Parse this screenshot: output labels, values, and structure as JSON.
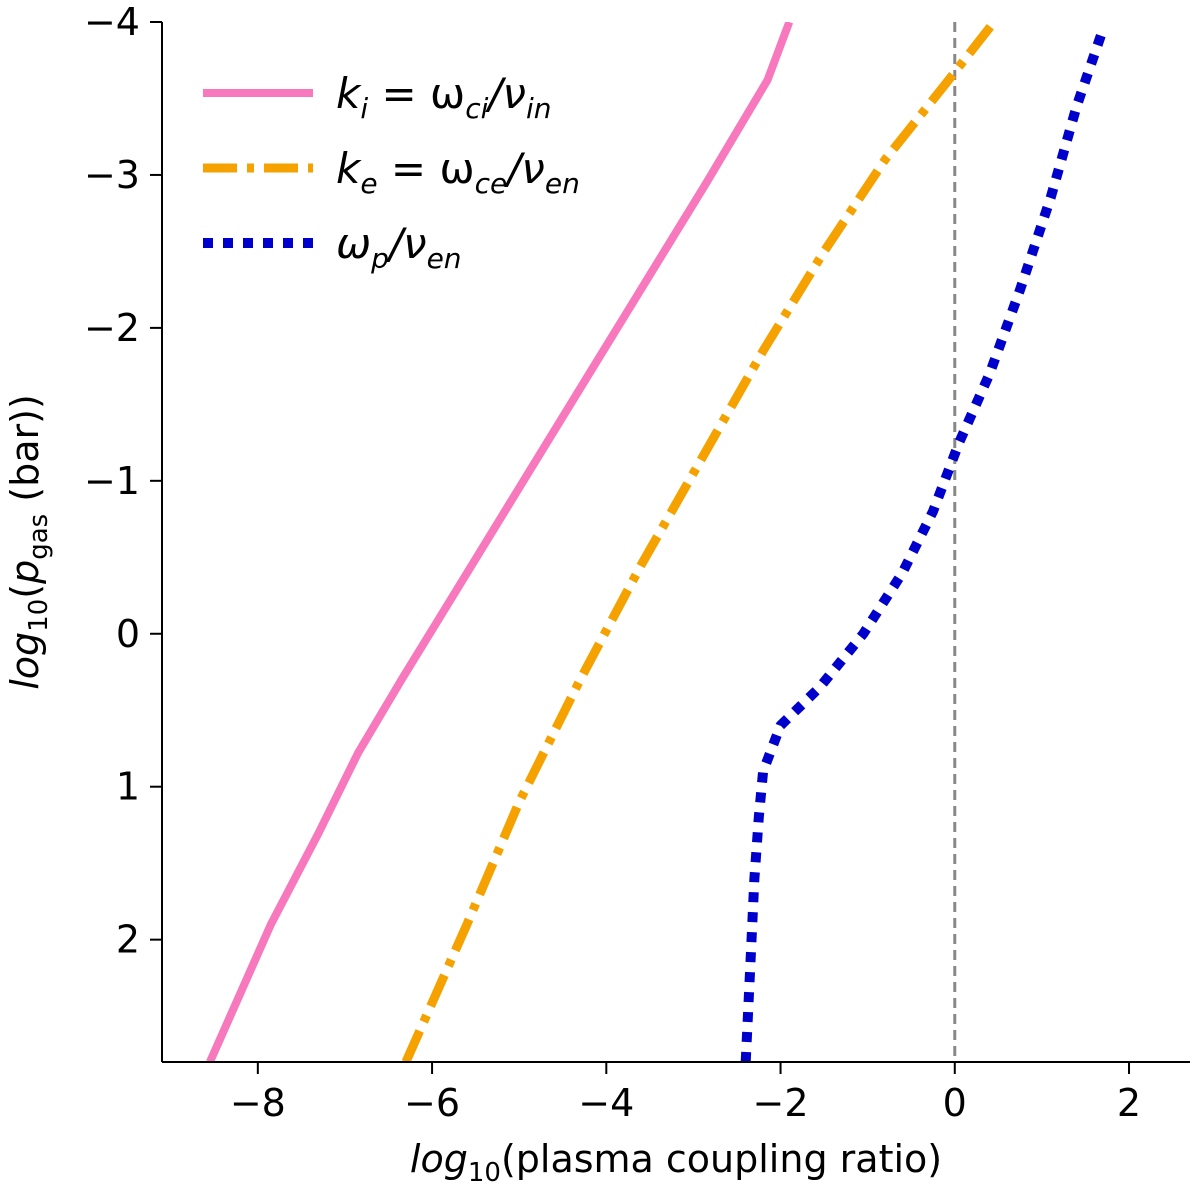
{
  "chart_data": {
    "type": "line",
    "title": "",
    "xlabel": "log10(plasma coupling ratio)",
    "ylabel": "log10(p_gas (bar))",
    "xlabel_parts": {
      "log": "log",
      "ten": "10",
      "rest": "(plasma coupling ratio)"
    },
    "ylabel_parts": {
      "log": "log",
      "ten": "10",
      "open": "(",
      "p": "p",
      "gas": "gas",
      "rest": " (bar))"
    },
    "xlim": [
      -9.1,
      2.7
    ],
    "ylim": [
      2.8,
      -4.0
    ],
    "y_inverted": true,
    "xticks": [
      -8,
      -6,
      -4,
      -2,
      0,
      2
    ],
    "xtick_labels": [
      "−8",
      "−6",
      "−4",
      "−2",
      "0",
      "2"
    ],
    "yticks": [
      -4,
      -3,
      -2,
      -1,
      0,
      1,
      2
    ],
    "ytick_labels": [
      "−4",
      "−3",
      "−2",
      "−1",
      "0",
      "1",
      "2"
    ],
    "reference_line": {
      "x": 0,
      "style": "dashed",
      "color": "#888888"
    },
    "legend_position": "top-left",
    "series": [
      {
        "name": "k_i = ω_ci/ν_in",
        "legend_parts": {
          "a": "k",
          "a_sub": "i",
          "eq": " = ω",
          "b_sub": "ci",
          "slash": "/ν",
          "c_sub": "in"
        },
        "color": "#F778BC",
        "style": "solid",
        "x": [
          -8.55,
          -7.85,
          -7.3,
          -6.85,
          -6.35,
          -5.65,
          -4.95,
          -4.25,
          -3.55,
          -2.85,
          -2.15,
          -1.9
        ],
        "y": [
          2.8,
          1.9,
          1.3,
          0.78,
          0.3,
          -0.35,
          -1.0,
          -1.65,
          -2.3,
          -2.95,
          -3.62,
          -4.0
        ]
      },
      {
        "name": "k_e = ω_ce/ν_en",
        "legend_parts": {
          "a": "k",
          "a_sub": "e",
          "eq": " = ω",
          "b_sub": "ce",
          "slash": "/ν",
          "c_sub": "en"
        },
        "color": "#F5A200",
        "style": "dashdot",
        "x": [
          -6.3,
          -5.6,
          -5.0,
          -4.3,
          -3.6,
          -2.9,
          -2.2,
          -1.5,
          -0.8,
          -0.1,
          0.45
        ],
        "y": [
          2.8,
          1.9,
          1.1,
          0.3,
          -0.45,
          -1.15,
          -1.85,
          -2.5,
          -3.1,
          -3.6,
          -4.0
        ]
      },
      {
        "name": "ω_p/ν_en",
        "legend_parts": {
          "a": "ω",
          "a_sub": "p",
          "slash": "/ν",
          "c_sub": "en"
        },
        "color": "#0000CC",
        "style": "dotted",
        "x": [
          -2.4,
          -2.35,
          -2.3,
          -2.25,
          -2.2,
          -2.0,
          -1.55,
          -1.05,
          -0.6,
          -0.25,
          0.05,
          0.4,
          0.75,
          1.1,
          1.4,
          1.7
        ],
        "y": [
          2.8,
          2.2,
          1.6,
          1.2,
          0.9,
          0.6,
          0.35,
          0.0,
          -0.4,
          -0.8,
          -1.25,
          -1.7,
          -2.25,
          -2.85,
          -3.45,
          -3.95
        ]
      }
    ]
  }
}
